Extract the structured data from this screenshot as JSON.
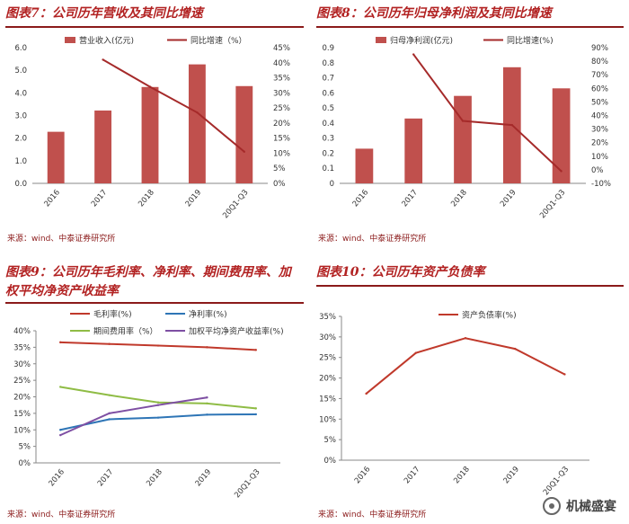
{
  "panels": [
    {
      "title": "图表7：公司历年营收及其同比增速",
      "source": "来源：wind、中泰证券研究所",
      "chart": {
        "type": "bar",
        "categories": [
          "2016",
          "2017",
          "2018",
          "2019",
          "20Q1-Q3"
        ],
        "series": [
          {
            "name": "营业收入(亿元)",
            "kind": "bar",
            "axis": "left",
            "values": [
              2.28,
              3.22,
              4.26,
              5.26,
              4.3
            ]
          },
          {
            "name": "同比增速（%）",
            "kind": "line",
            "axis": "right",
            "values": [
              null,
              41,
              32,
              23.5,
              10.5
            ]
          }
        ],
        "ylim": [
          0,
          6
        ],
        "yticks": [
          0,
          1,
          2,
          3,
          4,
          5,
          6
        ],
        "ytick_labels": [
          "0.0",
          "1.0",
          "2.0",
          "3.0",
          "4.0",
          "5.0",
          "6.0"
        ],
        "y2lim": [
          0,
          45
        ],
        "y2ticks": [
          0,
          5,
          10,
          15,
          20,
          25,
          30,
          35,
          40,
          45
        ],
        "y2tick_labels": [
          "0%",
          "5%",
          "10%",
          "15%",
          "20%",
          "25%",
          "30%",
          "35%",
          "40%",
          "45%"
        ]
      }
    },
    {
      "title": "图表8：公司历年归母净利润及其同比增速",
      "source": "来源：wind、中泰证券研究所",
      "chart": {
        "type": "bar",
        "categories": [
          "2016",
          "2017",
          "2018",
          "2019",
          "20Q1-Q3"
        ],
        "series": [
          {
            "name": "归母净利润(亿元)",
            "kind": "bar",
            "axis": "left",
            "values": [
              0.23,
              0.43,
              0.58,
              0.77,
              0.63
            ]
          },
          {
            "name": "同比增速(%)",
            "kind": "line",
            "axis": "right",
            "values": [
              null,
              85,
              36,
              33,
              -1
            ]
          }
        ],
        "ylim": [
          0,
          0.9
        ],
        "yticks": [
          0,
          0.1,
          0.2,
          0.3,
          0.4,
          0.5,
          0.6,
          0.7,
          0.8,
          0.9
        ],
        "ytick_labels": [
          "0",
          "0.1",
          "0.2",
          "0.3",
          "0.4",
          "0.5",
          "0.6",
          "0.7",
          "0.8",
          "0.9"
        ],
        "y2lim": [
          -10,
          90
        ],
        "y2ticks": [
          -10,
          0,
          10,
          20,
          30,
          40,
          50,
          60,
          70,
          80,
          90
        ],
        "y2tick_labels": [
          "-10%",
          "0%",
          "10%",
          "20%",
          "30%",
          "40%",
          "50%",
          "60%",
          "70%",
          "80%",
          "90%"
        ]
      }
    },
    {
      "title": "图表9：公司历年毛利率、净利率、期间费用率、加",
      "title2": "权平均净资产收益率",
      "source": "来源：wind、中泰证券研究所",
      "chart": {
        "type": "line",
        "categories": [
          "2016",
          "2017",
          "2018",
          "2019",
          "20Q1-Q3"
        ],
        "series": [
          {
            "name": "毛利率(%)",
            "color": "#c0392b",
            "values": [
              36.5,
              36,
              35.5,
              35,
              34.2
            ]
          },
          {
            "name": "净利率(%)",
            "color": "#2e75b6",
            "values": [
              10,
              13.2,
              13.7,
              14.6,
              14.7
            ]
          },
          {
            "name": "期间费用率（%）",
            "color": "#8fbc45",
            "values": [
              23,
              20.5,
              18.3,
              18,
              16.5
            ]
          },
          {
            "name": "加权平均净资产收益率(%)",
            "color": "#7e4fa3",
            "values": [
              8.4,
              15,
              17.5,
              19.8,
              null
            ]
          }
        ],
        "ylim": [
          0,
          40
        ],
        "yticks": [
          0,
          5,
          10,
          15,
          20,
          25,
          30,
          35,
          40
        ],
        "ytick_labels": [
          "0%",
          "5%",
          "10%",
          "15%",
          "20%",
          "25%",
          "30%",
          "35%",
          "40%"
        ]
      }
    },
    {
      "title": "图表10：公司历年资产负债率",
      "source": "来源：wind、中泰证券研究所",
      "chart": {
        "type": "line",
        "categories": [
          "2016",
          "2017",
          "2018",
          "2019",
          "20Q1-Q3"
        ],
        "series": [
          {
            "name": "资产负债率(%)",
            "color": "#c0392b",
            "values": [
              16.2,
              26.1,
              29.7,
              27.1,
              20.9
            ]
          }
        ],
        "ylim": [
          0,
          35
        ],
        "yticks": [
          0,
          5,
          10,
          15,
          20,
          25,
          30,
          35
        ],
        "ytick_labels": [
          "0%",
          "5%",
          "10%",
          "15%",
          "20%",
          "25%",
          "30%",
          "35%"
        ]
      }
    }
  ],
  "watermark": {
    "text": "机械盛宴",
    "icon": "wechat-channel-icon"
  },
  "colors": {
    "bar": "#c0504d",
    "line": "#a52a2a",
    "title": "#b22222",
    "rule": "#8b1a1a"
  }
}
